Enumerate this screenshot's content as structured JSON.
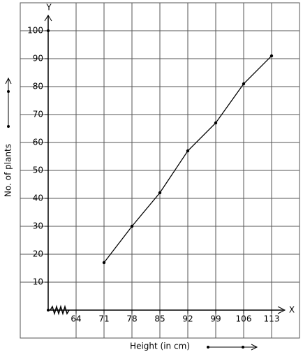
{
  "chart_data": {
    "type": "line",
    "x_label": "Height (in cm)",
    "y_label": "No. of plants",
    "x_axis_name": "X",
    "y_axis_name": "Y",
    "x": [
      71,
      78,
      85,
      92,
      99,
      106,
      113
    ],
    "values": [
      17,
      30,
      42,
      57,
      67,
      81,
      91
    ],
    "color": "#000000",
    "xlim": [
      50,
      120
    ],
    "xticks": [
      64,
      71,
      78,
      85,
      92,
      99,
      106,
      113
    ],
    "ylim": [
      -10,
      110
    ],
    "yticks": [
      10,
      20,
      30,
      40,
      50,
      60,
      70,
      80,
      90,
      100
    ],
    "grid": true
  }
}
